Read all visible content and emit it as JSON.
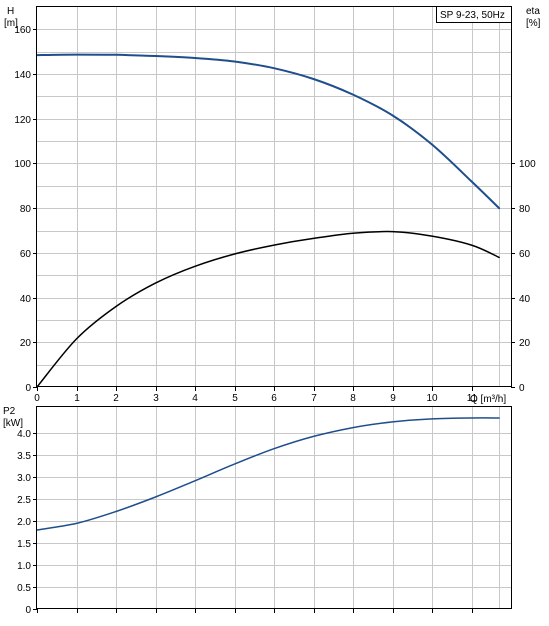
{
  "chart_data": [
    {
      "type": "line",
      "panel": "head-efficiency",
      "title": "SP 9-23, 50Hz",
      "xlabel": "Q [m³/h]",
      "xlim": [
        0,
        12
      ],
      "x_ticks": [
        "0",
        "1",
        "2",
        "3",
        "4",
        "5",
        "6",
        "7",
        "8",
        "9",
        "10",
        "11"
      ],
      "grid": true,
      "y_axes": {
        "left": {
          "label_top": "H",
          "label_unit": "[m]",
          "ylim": [
            0,
            170
          ],
          "ticks": [
            "0",
            "20",
            "40",
            "60",
            "80",
            "100",
            "120",
            "140",
            "160"
          ]
        },
        "right": {
          "label_top": "eta",
          "label_unit": "[%]",
          "ylim": [
            0,
            170
          ],
          "ticks": [
            "0",
            "20",
            "40",
            "60",
            "80",
            "100"
          ]
        }
      },
      "series": [
        {
          "axis": "left",
          "color": "#1f4e8c",
          "x": [
            0,
            1,
            2,
            3,
            4,
            5,
            6,
            7,
            8,
            9,
            10,
            11,
            11.7
          ],
          "y": [
            148.5,
            148.7,
            148.6,
            148.1,
            147.2,
            145.6,
            142.6,
            137.8,
            130.8,
            121.5,
            108.5,
            92.0,
            80.0
          ]
        },
        {
          "axis": "right",
          "color": "#000000",
          "x": [
            0,
            1,
            2,
            3,
            4,
            5,
            6,
            7,
            8,
            9,
            10,
            11,
            11.7
          ],
          "y": [
            0,
            21.5,
            36.0,
            46.5,
            54.0,
            59.5,
            63.5,
            66.5,
            68.8,
            69.5,
            67.5,
            63.5,
            58.0
          ]
        }
      ]
    },
    {
      "type": "line",
      "panel": "power",
      "xlim": [
        0,
        12
      ],
      "grid": true,
      "y_axes": {
        "left": {
          "label_top": "P2",
          "label_unit": "[kW]",
          "ylim": [
            0,
            4.6
          ],
          "ticks": [
            "0",
            "0.5",
            "1.0",
            "1.5",
            "2.0",
            "2.5",
            "3.0",
            "3.5",
            "4.0"
          ]
        }
      },
      "series": [
        {
          "axis": "left",
          "color": "#1f4e8c",
          "x": [
            0,
            1,
            2,
            3,
            4,
            5,
            6,
            7,
            8,
            9,
            10,
            11,
            11.7
          ],
          "y": [
            1.8,
            1.95,
            2.22,
            2.55,
            2.92,
            3.3,
            3.65,
            3.93,
            4.13,
            4.26,
            4.33,
            4.35,
            4.35
          ]
        }
      ]
    }
  ]
}
